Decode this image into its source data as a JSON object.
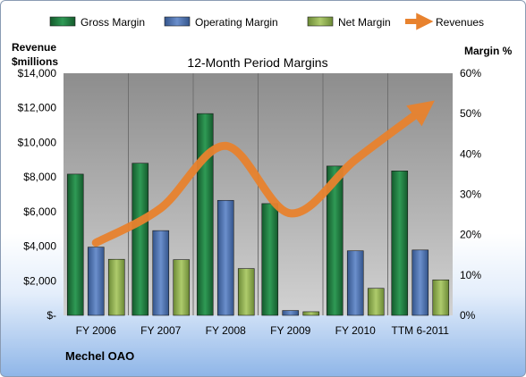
{
  "chart_data": {
    "type": "bar",
    "title": "12-Month Period Margins",
    "company": "Mechel OAO",
    "left_axis": {
      "title_line1": "Revenue",
      "title_line2": "$millions",
      "ylim": [
        0,
        14000
      ],
      "ticks": [
        0,
        2000,
        4000,
        6000,
        8000,
        10000,
        12000,
        14000
      ],
      "tick_labels": [
        "$-",
        "$2,000",
        "$4,000",
        "$6,000",
        "$8,000",
        "$10,000",
        "$12,000",
        "$14,000"
      ]
    },
    "right_axis": {
      "title": "Margin %",
      "ylim": [
        0,
        60
      ],
      "ticks": [
        0,
        10,
        20,
        30,
        40,
        50,
        60
      ],
      "tick_labels": [
        "0%",
        "10%",
        "20%",
        "30%",
        "40%",
        "50%",
        "60%"
      ]
    },
    "categories": [
      "FY 2006",
      "FY 2007",
      "FY 2008",
      "FY 2009",
      "FY 2010",
      "TTM 6-2011"
    ],
    "bar_series": [
      {
        "name": "Gross Margin",
        "color": "#1f7a3e",
        "values": [
          35,
          37.7,
          50,
          27.7,
          37,
          35.8
        ]
      },
      {
        "name": "Operating Margin",
        "color": "#4a6fb0",
        "values": [
          16.9,
          21,
          28.5,
          1.2,
          16,
          16.2
        ]
      },
      {
        "name": "Net Margin",
        "color": "#8bad4a",
        "values": [
          13.9,
          13.8,
          11.6,
          0.9,
          6.7,
          8.8
        ]
      }
    ],
    "line_series": {
      "name": "Revenues",
      "color": "#e8822e",
      "values": [
        4200,
        6200,
        9800,
        5900,
        9000,
        11800
      ]
    },
    "grid": "vertical",
    "legend": "top"
  }
}
